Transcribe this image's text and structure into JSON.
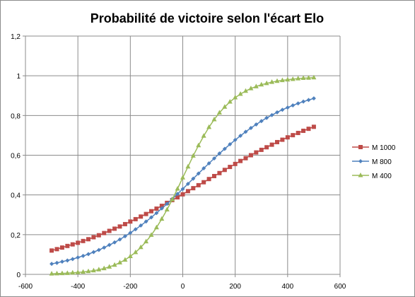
{
  "chart_data": {
    "type": "scatter",
    "title": "Probabilité de victoire selon l'écart Elo",
    "xlabel": "",
    "ylabel": "",
    "xlim": [
      -600,
      600
    ],
    "ylim": [
      0,
      1.2
    ],
    "x_ticks": [
      -600,
      -400,
      -200,
      0,
      200,
      400,
      600
    ],
    "y_ticks": [
      0,
      0.2,
      0.4,
      0.6,
      0.8,
      1,
      1.2
    ],
    "x_tick_labels": [
      "-600",
      "-400",
      "-200",
      "0",
      "200",
      "400",
      "600"
    ],
    "y_tick_labels": [
      "0",
      "0,2",
      "0,4",
      "0,6",
      "0,8",
      "1",
      "1,2"
    ],
    "grid": true,
    "legend_position": "right",
    "series": [
      {
        "name": "M 1000",
        "color": "#be4b48",
        "marker": "square",
        "x": [
          -500,
          -480,
          -460,
          -440,
          -420,
          -400,
          -380,
          -360,
          -340,
          -320,
          -300,
          -280,
          -260,
          -240,
          -220,
          -200,
          -180,
          -160,
          -140,
          -120,
          -100,
          -80,
          -60,
          -40,
          -20,
          0,
          20,
          40,
          60,
          80,
          100,
          120,
          140,
          160,
          180,
          200,
          220,
          240,
          260,
          280,
          300,
          320,
          340,
          360,
          380,
          400,
          420,
          440,
          460,
          480,
          500
        ],
        "values": [
          0.12,
          0.127,
          0.135,
          0.143,
          0.151,
          0.159,
          0.168,
          0.177,
          0.187,
          0.197,
          0.208,
          0.219,
          0.23,
          0.241,
          0.253,
          0.266,
          0.278,
          0.291,
          0.304,
          0.318,
          0.331,
          0.345,
          0.36,
          0.374,
          0.388,
          0.403,
          0.419,
          0.434,
          0.449,
          0.464,
          0.48,
          0.495,
          0.51,
          0.526,
          0.541,
          0.556,
          0.571,
          0.585,
          0.6,
          0.614,
          0.627,
          0.64,
          0.653,
          0.666,
          0.678,
          0.69,
          0.701,
          0.712,
          0.723,
          0.733,
          0.743
        ]
      },
      {
        "name": "M 800",
        "color": "#4f81bd",
        "marker": "diamond",
        "x": [
          -500,
          -480,
          -460,
          -440,
          -420,
          -400,
          -380,
          -360,
          -340,
          -320,
          -300,
          -280,
          -260,
          -240,
          -220,
          -200,
          -180,
          -160,
          -140,
          -120,
          -100,
          -80,
          -60,
          -40,
          -20,
          0,
          20,
          40,
          60,
          80,
          100,
          120,
          140,
          160,
          180,
          200,
          220,
          240,
          260,
          280,
          300,
          320,
          340,
          360,
          380,
          400,
          420,
          440,
          460,
          480,
          500
        ],
        "values": [
          0.053,
          0.058,
          0.064,
          0.07,
          0.077,
          0.085,
          0.093,
          0.102,
          0.112,
          0.123,
          0.135,
          0.148,
          0.161,
          0.176,
          0.192,
          0.209,
          0.227,
          0.246,
          0.266,
          0.287,
          0.309,
          0.332,
          0.355,
          0.38,
          0.405,
          0.43,
          0.456,
          0.482,
          0.508,
          0.534,
          0.559,
          0.584,
          0.609,
          0.632,
          0.655,
          0.677,
          0.698,
          0.718,
          0.737,
          0.755,
          0.772,
          0.788,
          0.802,
          0.816,
          0.829,
          0.84,
          0.851,
          0.861,
          0.87,
          0.878,
          0.886
        ]
      },
      {
        "name": "M 400",
        "color": "#9bbb59",
        "marker": "triangle",
        "x": [
          -500,
          -480,
          -460,
          -440,
          -420,
          -400,
          -380,
          -360,
          -340,
          -320,
          -300,
          -280,
          -260,
          -240,
          -220,
          -200,
          -180,
          -160,
          -140,
          -120,
          -100,
          -80,
          -60,
          -40,
          -20,
          0,
          20,
          40,
          60,
          80,
          100,
          120,
          140,
          160,
          180,
          200,
          220,
          240,
          260,
          280,
          300,
          320,
          340,
          360,
          380,
          400,
          420,
          440,
          460,
          480,
          500
        ],
        "values": [
          0.003,
          0.004,
          0.005,
          0.006,
          0.008,
          0.01,
          0.012,
          0.015,
          0.019,
          0.024,
          0.03,
          0.038,
          0.047,
          0.059,
          0.073,
          0.091,
          0.111,
          0.136,
          0.165,
          0.198,
          0.236,
          0.279,
          0.326,
          0.377,
          0.431,
          0.487,
          0.542,
          0.597,
          0.649,
          0.697,
          0.741,
          0.78,
          0.814,
          0.843,
          0.869,
          0.89,
          0.908,
          0.923,
          0.936,
          0.946,
          0.955,
          0.962,
          0.968,
          0.973,
          0.977,
          0.98,
          0.983,
          0.986,
          0.988,
          0.989,
          0.991
        ]
      }
    ]
  }
}
